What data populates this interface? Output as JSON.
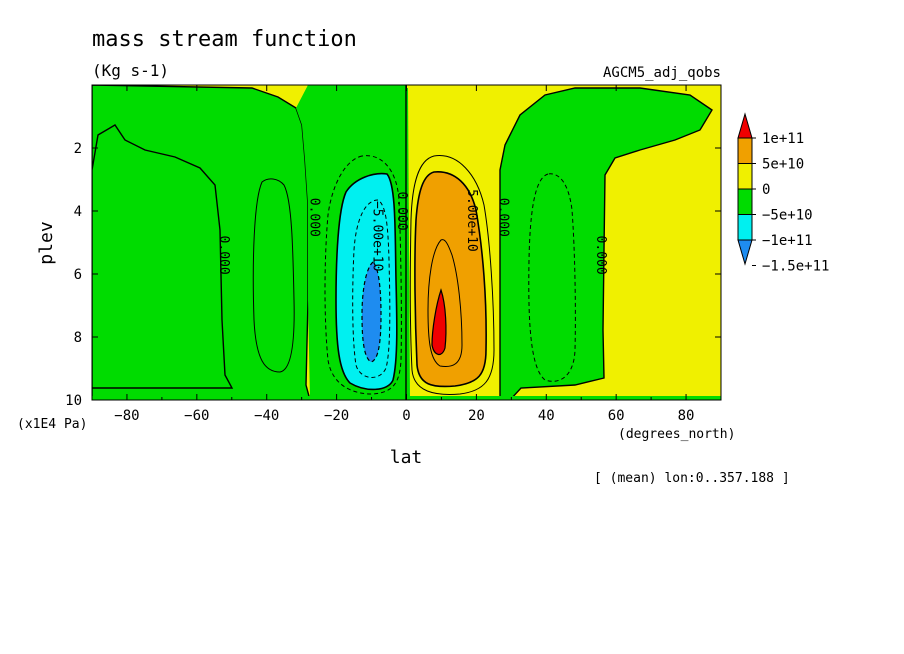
{
  "chart_data": {
    "type": "heatmap",
    "title": "mass stream function",
    "units": "(Kg s-1)",
    "experiment": "AGCM5_adj_qobs",
    "xlabel": "lat",
    "ylabel": "plev",
    "x_units": "(degrees_north)",
    "y_units": "(x1E4 Pa)",
    "footnote": "[ (mean) lon:0..357.188 ]",
    "xlim": [
      -90,
      90
    ],
    "ylim": [
      10,
      0
    ],
    "x_ticks": [
      -80,
      -60,
      -40,
      -20,
      0,
      20,
      40,
      60,
      80
    ],
    "x_tick_labels": [
      "−80",
      "−60",
      "−40",
      "−20",
      "0",
      "20",
      "40",
      "60",
      "80"
    ],
    "y_ticks": [
      2,
      4,
      6,
      8,
      10
    ],
    "y_tick_labels": [
      "2",
      "4",
      "6",
      "8",
      "10"
    ],
    "colorbar": {
      "levels": [
        -150000000000,
        -100000000000,
        -50000000000,
        0,
        50000000000,
        100000000000
      ],
      "labels": [
        "−1.5e+11",
        "−1e+11",
        "−5e+10",
        "0",
        "5e+10",
        "1e+11"
      ],
      "colors": [
        "#1e8cf0",
        "#00f0f0",
        "#00dc00",
        "#f0f000",
        "#f0a000",
        "#f00000"
      ]
    },
    "contour_labels": [
      {
        "text": "0.000",
        "lat": -52,
        "plev": 5.4
      },
      {
        "text": "0.000",
        "lat": -26,
        "plev": 4.2
      },
      {
        "text": "0.000",
        "lat": -1,
        "plev": 4.0
      },
      {
        "text": "0.000",
        "lat": 28,
        "plev": 4.2
      },
      {
        "text": "0.000",
        "lat": 56,
        "plev": 5.4
      },
      {
        "text": "−5.00e+10",
        "lat": -8,
        "plev": 4.8
      },
      {
        "text": "5.00e+10",
        "lat": 19,
        "plev": 4.3
      }
    ],
    "features": [
      {
        "region": "southern Hadley cell",
        "sign": "negative",
        "lat_range": [
          -28,
          0
        ],
        "min_value_approx": -150000000000,
        "center_lat": -10,
        "center_plev": 7.5
      },
      {
        "region": "northern Hadley cell",
        "sign": "positive",
        "lat_range": [
          2,
          24
        ],
        "max_value_approx": 100000000000,
        "center_lat": 10,
        "center_plev": 7.8
      },
      {
        "region": "southern Ferrel cell",
        "sign": "positive",
        "lat_range": [
          -50,
          -28
        ]
      },
      {
        "region": "northern Ferrel cell",
        "sign": "negative",
        "lat_range": [
          28,
          56
        ]
      }
    ]
  }
}
